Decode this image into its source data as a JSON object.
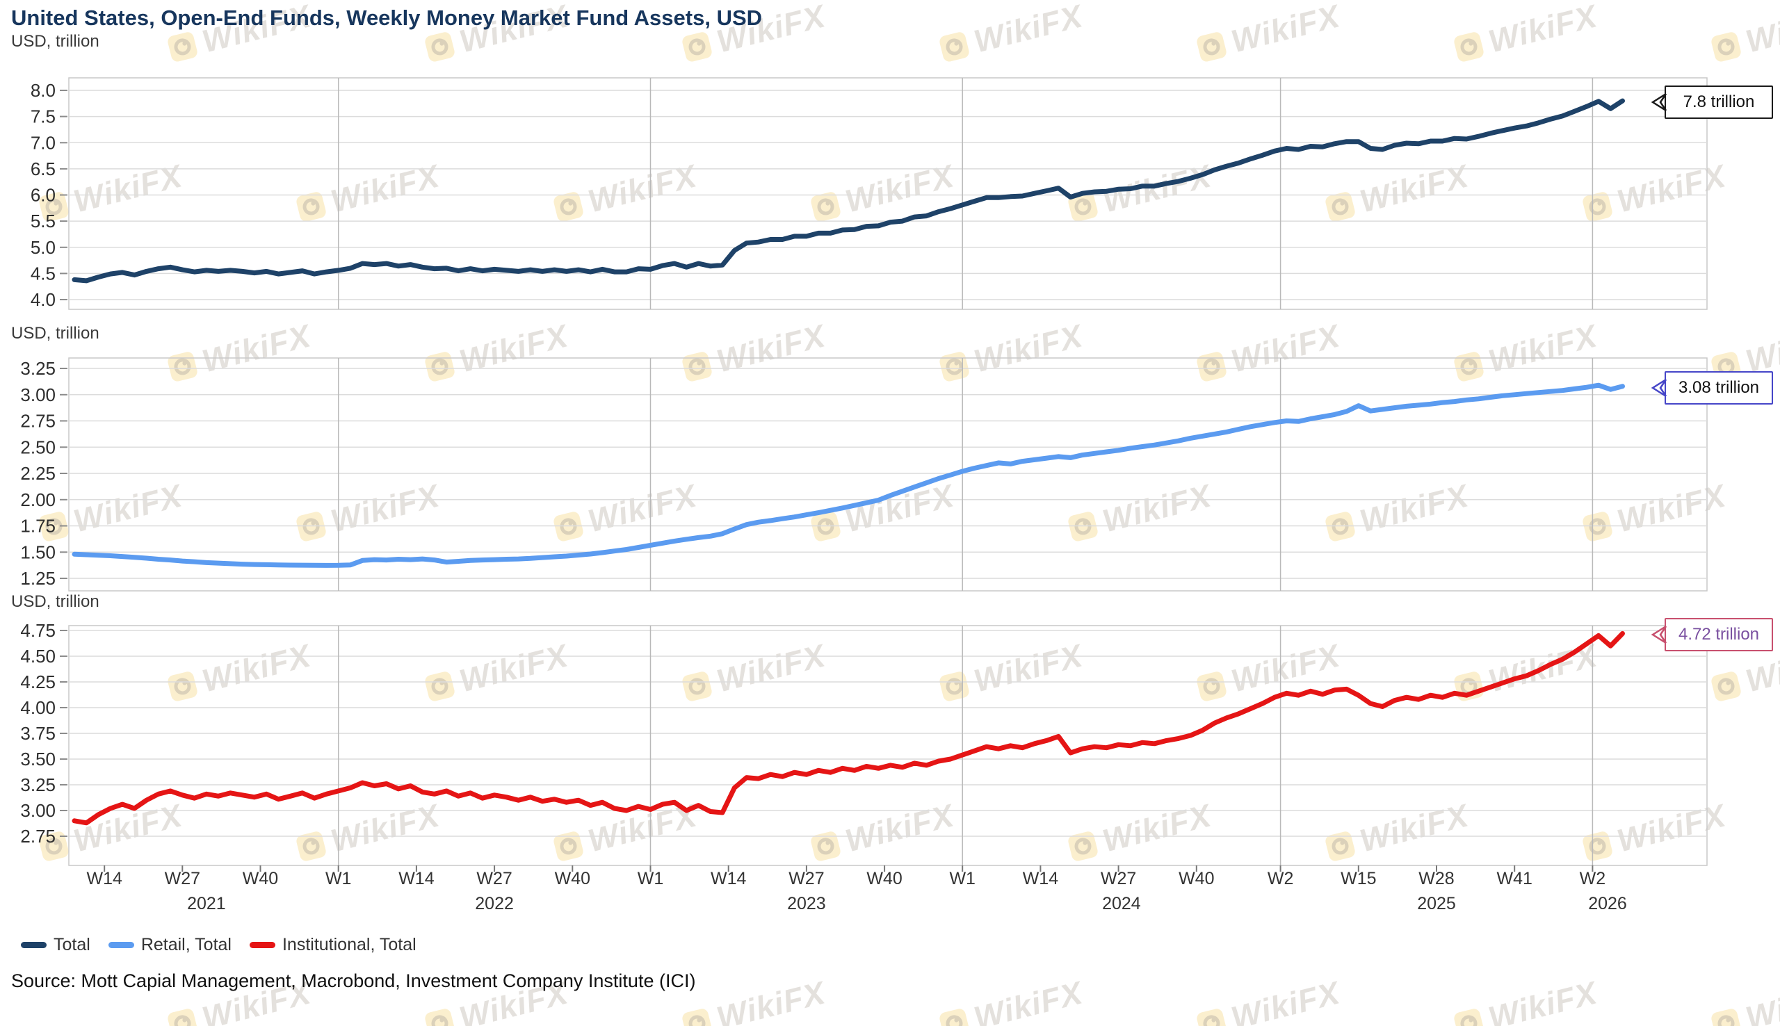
{
  "title": "United States, Open-End Funds, Weekly Money Market Fund Assets, USD",
  "source_line": "Source: Mott Capial Management, Macrobond, Investment Company Institute (ICI)",
  "watermark": {
    "text": "WikiFX"
  },
  "legend": [
    {
      "label": "Total",
      "color": "#1e4268"
    },
    {
      "label": "Retail, Total",
      "color": "#5b9bf0"
    },
    {
      "label": "Institutional, Total",
      "color": "#e51515"
    }
  ],
  "chart_data": {
    "type": "line",
    "title": "United States, Open-End Funds, Weekly Money Market Fund Assets, USD",
    "x_description": "Weekly data from 2021-W09 to 2026-W04; week index 0 = 2021-W09; series sampled every 2 weeks",
    "week_start": 0,
    "week_step": 2,
    "grid": true,
    "legend_position": "bottom",
    "xticks": [
      {
        "label": "W14",
        "week": 5
      },
      {
        "label": "W27",
        "week": 18
      },
      {
        "label": "W40",
        "week": 31
      },
      {
        "label": "W1",
        "week": 44,
        "gridline": true
      },
      {
        "label": "W14",
        "week": 57
      },
      {
        "label": "W27",
        "week": 70
      },
      {
        "label": "W40",
        "week": 83
      },
      {
        "label": "W1",
        "week": 96,
        "gridline": true
      },
      {
        "label": "W14",
        "week": 109
      },
      {
        "label": "W27",
        "week": 122
      },
      {
        "label": "W40",
        "week": 135
      },
      {
        "label": "W1",
        "week": 148,
        "gridline": true
      },
      {
        "label": "W14",
        "week": 161
      },
      {
        "label": "W27",
        "week": 174
      },
      {
        "label": "W40",
        "week": 187
      },
      {
        "label": "W2",
        "week": 201,
        "gridline": true
      },
      {
        "label": "W15",
        "week": 214
      },
      {
        "label": "W28",
        "week": 227
      },
      {
        "label": "W41",
        "week": 240
      },
      {
        "label": "W2",
        "week": 253,
        "gridline": true
      }
    ],
    "years": [
      {
        "label": "2021",
        "week_mid": 22
      },
      {
        "label": "2022",
        "week_mid": 70
      },
      {
        "label": "2023",
        "week_mid": 122
      },
      {
        "label": "2024",
        "week_mid": 174.5
      },
      {
        "label": "2025",
        "week_mid": 227
      },
      {
        "label": "2026",
        "week_mid": 255.5
      }
    ],
    "panels": [
      {
        "units_label": "USD, trillion",
        "name": "Total",
        "slug": "total",
        "color": "#1e4268",
        "ylim": [
          4.0,
          8.0
        ],
        "ytick_step": 0.5,
        "ytick_labels": [
          "8.0",
          "7.5",
          "7.0",
          "6.5",
          "6.0",
          "5.5",
          "5.0",
          "4.5",
          "4.0"
        ],
        "callout": {
          "text": "7.8 trillion",
          "value": 7.8,
          "border": "#1a1a1a",
          "text_color": "#111111"
        },
        "values": [
          4.38,
          4.36,
          4.43,
          4.49,
          4.52,
          4.47,
          4.54,
          4.59,
          4.62,
          4.57,
          4.53,
          4.56,
          4.54,
          4.56,
          4.54,
          4.51,
          4.54,
          4.49,
          4.52,
          4.55,
          4.49,
          4.53,
          4.56,
          4.6,
          4.69,
          4.67,
          4.69,
          4.64,
          4.67,
          4.62,
          4.59,
          4.6,
          4.55,
          4.59,
          4.55,
          4.58,
          4.56,
          4.54,
          4.57,
          4.54,
          4.57,
          4.54,
          4.57,
          4.53,
          4.58,
          4.53,
          4.53,
          4.59,
          4.58,
          4.65,
          4.69,
          4.62,
          4.69,
          4.64,
          4.66,
          4.94,
          5.08,
          5.1,
          5.15,
          5.15,
          5.21,
          5.21,
          5.27,
          5.27,
          5.33,
          5.34,
          5.4,
          5.41,
          5.48,
          5.5,
          5.58,
          5.6,
          5.68,
          5.74,
          5.81,
          5.88,
          5.95,
          5.95,
          5.97,
          5.98,
          6.03,
          6.08,
          6.13,
          5.96,
          6.03,
          6.06,
          6.07,
          6.11,
          6.12,
          6.17,
          6.17,
          6.22,
          6.26,
          6.32,
          6.39,
          6.48,
          6.55,
          6.61,
          6.69,
          6.76,
          6.84,
          6.89,
          6.87,
          6.93,
          6.92,
          6.98,
          7.02,
          7.02,
          6.89,
          6.87,
          6.95,
          6.99,
          6.98,
          7.03,
          7.03,
          7.08,
          7.07,
          7.12,
          7.18,
          7.23,
          7.28,
          7.32,
          7.38,
          7.45,
          7.51,
          7.6,
          7.69,
          7.79,
          7.65,
          7.8
        ]
      },
      {
        "units_label": "USD, trillion",
        "name": "Retail, Total",
        "slug": "retail-total",
        "color": "#5b9bf0",
        "ylim": [
          1.25,
          3.25
        ],
        "ytick_step": 0.25,
        "ytick_labels": [
          "3.25",
          "3.00",
          "2.75",
          "2.50",
          "2.25",
          "2.00",
          "1.75",
          "1.50",
          "1.25"
        ],
        "callout": {
          "text": "3.08 trillion",
          "value": 3.08,
          "border": "#4646c8",
          "text_color": "#111111"
        },
        "values": [
          1.48,
          1.475,
          1.47,
          1.465,
          1.458,
          1.45,
          1.442,
          1.432,
          1.425,
          1.415,
          1.408,
          1.4,
          1.395,
          1.39,
          1.385,
          1.382,
          1.38,
          1.378,
          1.376,
          1.375,
          1.374,
          1.373,
          1.374,
          1.378,
          1.42,
          1.428,
          1.425,
          1.432,
          1.428,
          1.435,
          1.425,
          1.405,
          1.412,
          1.42,
          1.425,
          1.428,
          1.432,
          1.435,
          1.44,
          1.448,
          1.455,
          1.462,
          1.472,
          1.482,
          1.495,
          1.51,
          1.525,
          1.545,
          1.565,
          1.585,
          1.605,
          1.622,
          1.638,
          1.652,
          1.675,
          1.72,
          1.762,
          1.785,
          1.8,
          1.818,
          1.835,
          1.855,
          1.875,
          1.898,
          1.92,
          1.945,
          1.97,
          1.995,
          2.04,
          2.08,
          2.12,
          2.16,
          2.2,
          2.235,
          2.27,
          2.3,
          2.325,
          2.35,
          2.34,
          2.365,
          2.38,
          2.395,
          2.41,
          2.4,
          2.425,
          2.44,
          2.455,
          2.47,
          2.49,
          2.505,
          2.52,
          2.54,
          2.56,
          2.585,
          2.605,
          2.625,
          2.645,
          2.67,
          2.695,
          2.715,
          2.735,
          2.75,
          2.745,
          2.77,
          2.79,
          2.81,
          2.84,
          2.895,
          2.845,
          2.86,
          2.875,
          2.89,
          2.9,
          2.91,
          2.925,
          2.935,
          2.95,
          2.96,
          2.975,
          2.99,
          3.0,
          3.01,
          3.02,
          3.03,
          3.04,
          3.055,
          3.07,
          3.09,
          3.05,
          3.08
        ]
      },
      {
        "units_label": "USD, trillion",
        "name": "Institutional, Total",
        "slug": "institutional-total",
        "color": "#e51515",
        "ylim": [
          2.75,
          4.75
        ],
        "ytick_step": 0.25,
        "ytick_labels": [
          "4.75",
          "4.50",
          "4.25",
          "4.00",
          "3.75",
          "3.50",
          "3.25",
          "3.00",
          "2.75"
        ],
        "callout": {
          "text": "4.72 trillion",
          "value": 4.72,
          "border": "#c8506e",
          "text_color": "#7a50a0"
        },
        "values": [
          2.9,
          2.88,
          2.96,
          3.02,
          3.06,
          3.02,
          3.1,
          3.16,
          3.19,
          3.15,
          3.12,
          3.16,
          3.14,
          3.17,
          3.15,
          3.13,
          3.16,
          3.11,
          3.14,
          3.17,
          3.12,
          3.16,
          3.19,
          3.22,
          3.27,
          3.24,
          3.26,
          3.21,
          3.24,
          3.18,
          3.16,
          3.19,
          3.14,
          3.17,
          3.12,
          3.15,
          3.13,
          3.1,
          3.13,
          3.09,
          3.11,
          3.08,
          3.1,
          3.05,
          3.08,
          3.02,
          3.0,
          3.04,
          3.01,
          3.06,
          3.08,
          3.0,
          3.05,
          2.99,
          2.98,
          3.22,
          3.32,
          3.31,
          3.35,
          3.33,
          3.37,
          3.35,
          3.39,
          3.37,
          3.41,
          3.39,
          3.43,
          3.41,
          3.44,
          3.42,
          3.46,
          3.44,
          3.48,
          3.5,
          3.54,
          3.58,
          3.62,
          3.6,
          3.63,
          3.61,
          3.65,
          3.68,
          3.72,
          3.56,
          3.6,
          3.62,
          3.61,
          3.64,
          3.63,
          3.66,
          3.65,
          3.68,
          3.7,
          3.73,
          3.78,
          3.85,
          3.9,
          3.94,
          3.99,
          4.04,
          4.1,
          4.14,
          4.12,
          4.16,
          4.13,
          4.17,
          4.18,
          4.12,
          4.04,
          4.01,
          4.07,
          4.1,
          4.08,
          4.12,
          4.1,
          4.14,
          4.12,
          4.16,
          4.2,
          4.24,
          4.28,
          4.31,
          4.36,
          4.42,
          4.47,
          4.54,
          4.62,
          4.7,
          4.6,
          4.72
        ]
      }
    ]
  }
}
